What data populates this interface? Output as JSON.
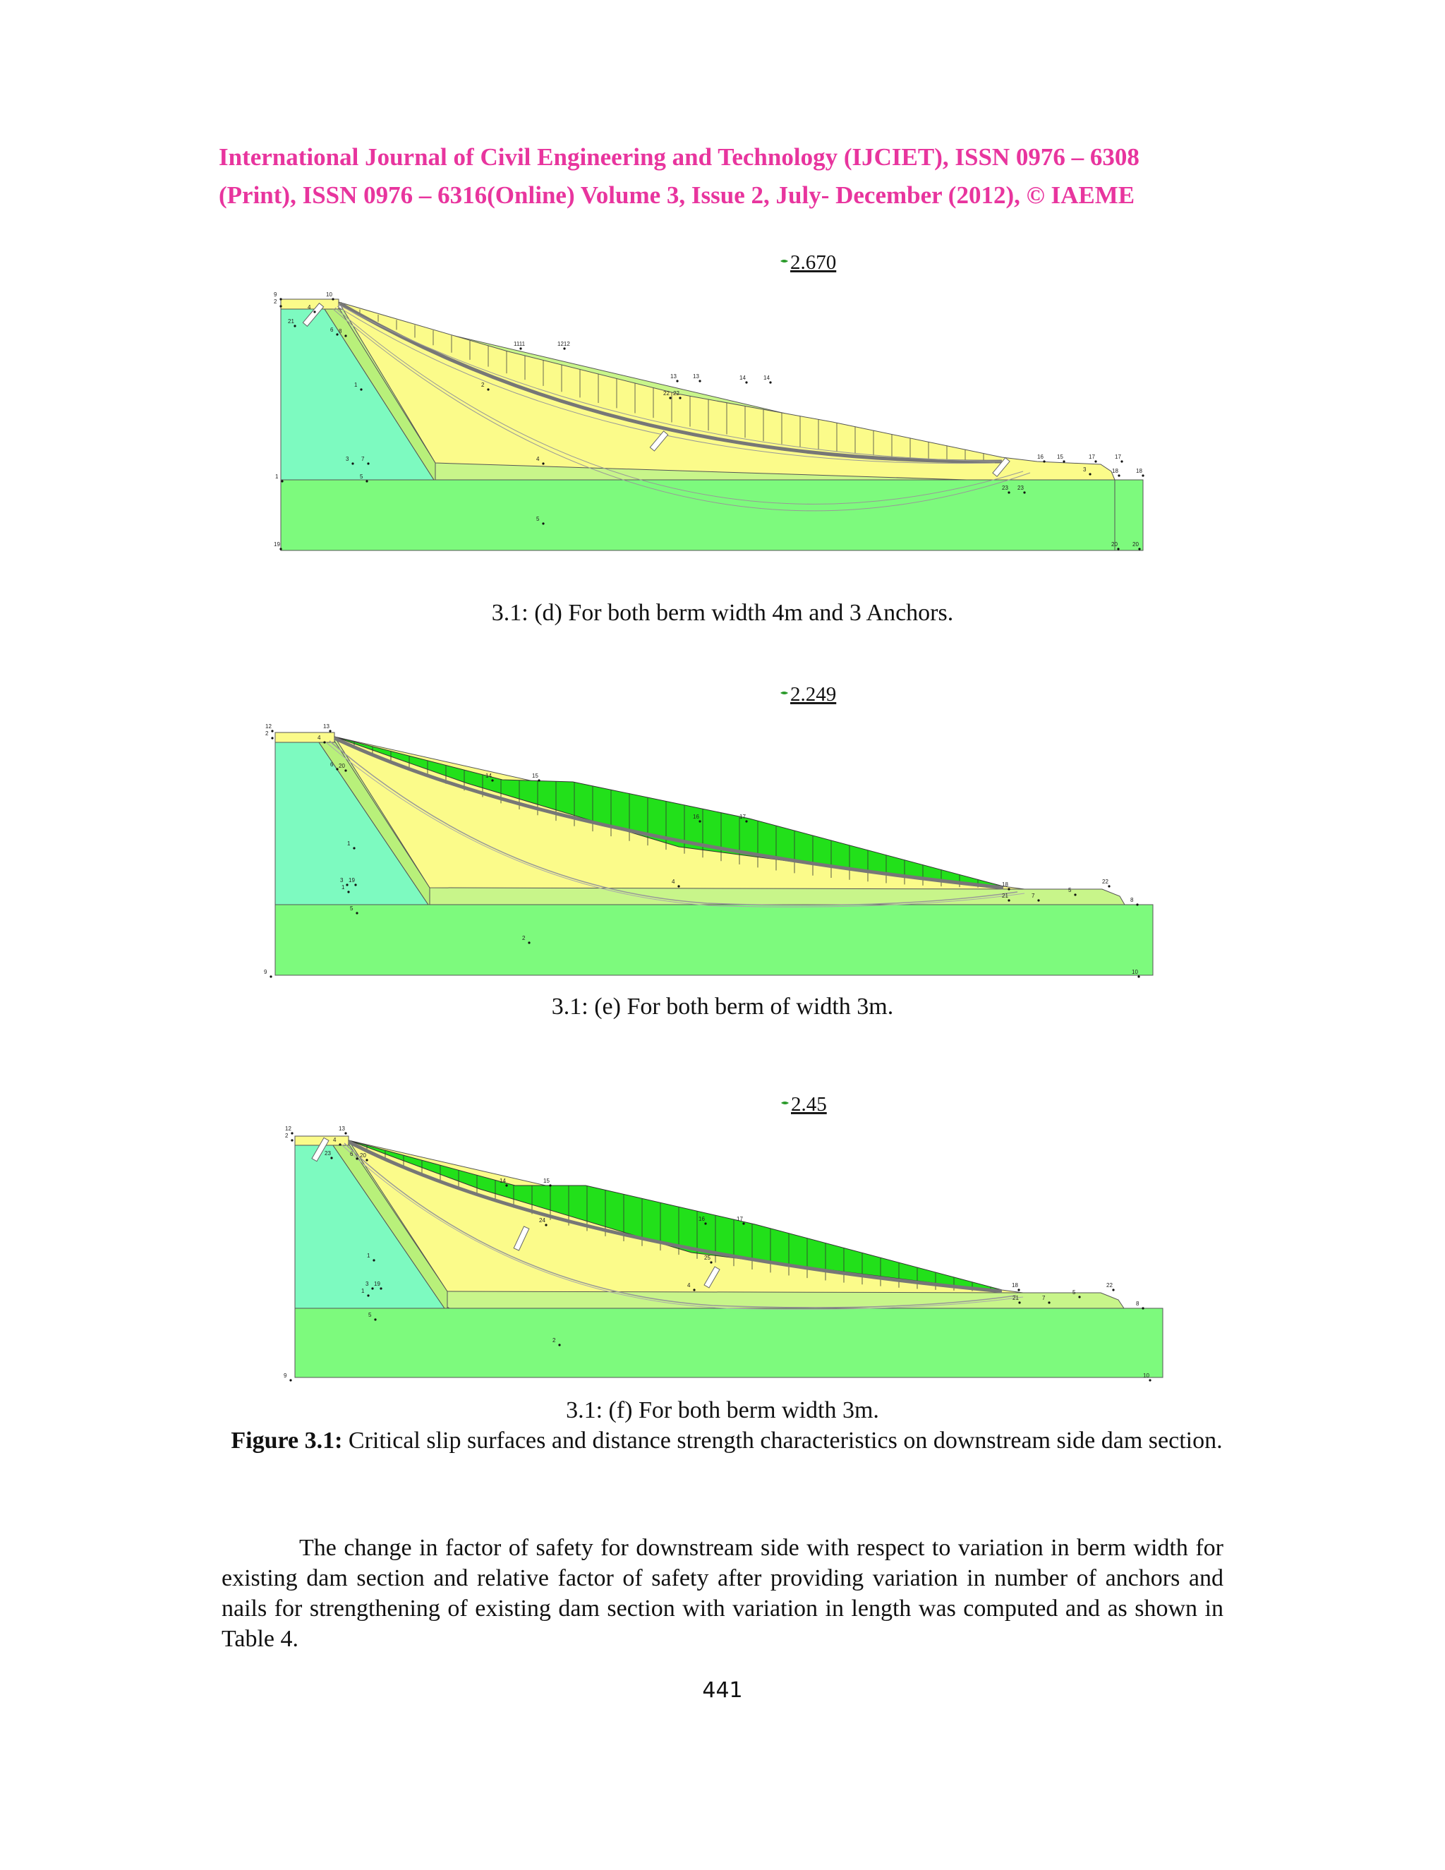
{
  "header": {
    "line1": "International Journal of Civil Engineering and Technology (IJCIET), ISSN 0976 – 6308",
    "line2": "(Print), ISSN 0976 – 6316(Online) Volume 3, Issue 2, July- December (2012), © IAEME"
  },
  "figures": [
    {
      "fos": "2.670",
      "caption": "3.1: (d) For both berm width 4m and 3 Anchors.",
      "slice_color": "#fbfb8a",
      "labels": [
        "9",
        "2",
        "10",
        "21",
        "4",
        "6",
        "8",
        "1111",
        "1212",
        "13",
        "13",
        "14",
        "14",
        "1",
        "2",
        "22",
        "22",
        "3",
        "7",
        "4",
        "16",
        "15",
        "17",
        "17",
        "3",
        "18",
        "18",
        "1",
        "5",
        "23",
        "23",
        "5",
        "19",
        "20",
        "20"
      ]
    },
    {
      "fos": "2.249",
      "caption": "3.1: (e) For both berm of width 3m.",
      "slice_color": "#22e01a",
      "labels": [
        "12",
        "2",
        "13",
        "4",
        "6",
        "20",
        "14",
        "15",
        "16",
        "17",
        "1",
        "3",
        "19",
        "1",
        "5",
        "4",
        "18",
        "22",
        "21",
        "7",
        "5",
        "8",
        "2",
        "9",
        "10"
      ]
    },
    {
      "fos": "2.45",
      "caption": "3.1: (f) For both berm width 3m.",
      "slice_color": "#22e01a",
      "labels": [
        "12",
        "2",
        "13",
        "4",
        "23",
        "6",
        "20",
        "14",
        "15",
        "24",
        "16",
        "17",
        "1",
        "25",
        "3",
        "19",
        "1",
        "5",
        "4",
        "18",
        "22",
        "21",
        "7",
        "5",
        "8",
        "2",
        "9",
        "10"
      ]
    }
  ],
  "figure_caption": {
    "label": "Figure 3.1:",
    "text": "Critical slip surfaces and distance strength characteristics on downstream side dam section."
  },
  "paragraph": "The change in factor of safety for downstream side with respect to variation in berm width for existing dam section and relative factor of safety after providing variation in number of anchors and nails for strengthening of existing dam section with variation in length was computed and as shown in Table 4.",
  "page_number": "441"
}
